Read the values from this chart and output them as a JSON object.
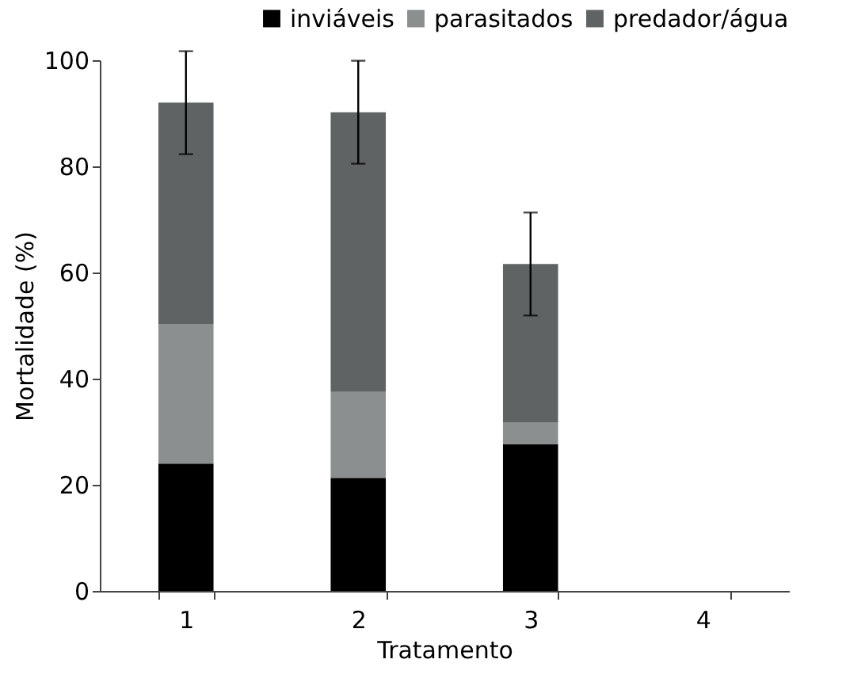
{
  "chart_data": {
    "type": "bar",
    "stacked": true,
    "xlabel": "Tratamento",
    "ylabel": "Mortalidade (%)",
    "categories": [
      "1",
      "2",
      "3",
      "4"
    ],
    "series": [
      {
        "name": "inviáveis",
        "color": "#000000",
        "values": [
          24,
          21.3,
          27.6,
          null
        ]
      },
      {
        "name": "parasitados",
        "color": "#8c8f8f",
        "values": [
          26.3,
          16.2,
          4.2,
          null
        ]
      },
      {
        "name": "predador/água",
        "color": "#5f6363",
        "values": [
          41.7,
          52.7,
          29.8,
          null
        ],
        "errors": [
          9.7,
          9.7,
          9.7,
          null
        ]
      }
    ],
    "ylim": [
      0,
      100
    ],
    "yticks": [
      0,
      20,
      40,
      60,
      80,
      100
    ],
    "grid": false,
    "legend": "top right"
  }
}
